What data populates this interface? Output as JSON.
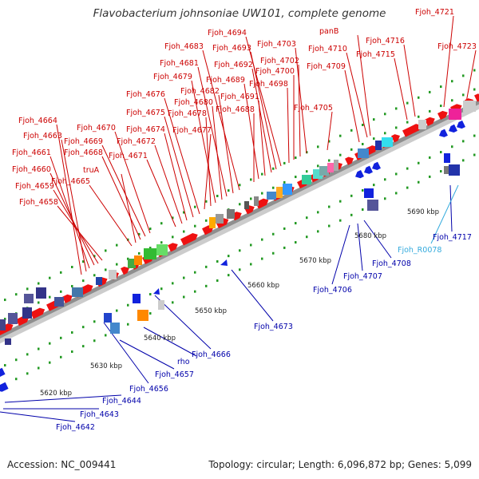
{
  "title": "Flavobacterium johnsoniae UW101, complete genome",
  "footer": {
    "accession": "Accession: NC_009441",
    "summary": "Topology: circular; Length: 6,096,872 bp; Genes: 5,099"
  },
  "colors": {
    "forward_gene": "#ee1111",
    "reverse_gene": "#1122dd",
    "forward_label": "#cc0000",
    "reverse_label": "#0000aa",
    "rna_label": "#33aadd",
    "backbone": "#999999",
    "tick": "#229922"
  },
  "scale": {
    "ticks": [
      {
        "label": "5620 kbp"
      },
      {
        "label": "5630 kbp"
      },
      {
        "label": "5640 kbp"
      },
      {
        "label": "5650 kbp"
      },
      {
        "label": "5660 kbp"
      },
      {
        "label": "5670 kbp"
      },
      {
        "label": "5680 kbp"
      },
      {
        "label": "5690 kbp"
      }
    ]
  },
  "forward_labels": [
    "Fjoh_4658",
    "Fjoh_4659",
    "Fjoh_4660",
    "Fjoh_4661",
    "Fjoh_4663",
    "Fjoh_4664",
    "Fjoh_4665",
    "truA",
    "Fjoh_4668",
    "Fjoh_4669",
    "Fjoh_4670",
    "Fjoh_4671",
    "Fjoh_4672",
    "Fjoh_4674",
    "Fjoh_4675",
    "Fjoh_4676",
    "Fjoh_4677",
    "Fjoh_4678",
    "Fjoh_4679",
    "Fjoh_4680",
    "Fjoh_4681",
    "Fjoh_4682",
    "Fjoh_4683",
    "Fjoh_4688",
    "Fjoh_4689",
    "Fjoh_4691",
    "Fjoh_4692",
    "Fjoh_4693",
    "Fjoh_4694",
    "Fjoh_4698",
    "Fjoh_4700",
    "Fjoh_4702",
    "Fjoh_4703",
    "Fjoh_4705",
    "Fjoh_4709",
    "Fjoh_4710",
    "panB",
    "Fjoh_4715",
    "Fjoh_4716",
    "Fjoh_4721",
    "Fjoh_4723"
  ],
  "reverse_labels": [
    "Fjoh_4642",
    "Fjoh_4643",
    "Fjoh_4644",
    "Fjoh_4656",
    "Fjoh_4657",
    "rho",
    "Fjoh_4666",
    "Fjoh_4673",
    "Fjoh_4706",
    "Fjoh_4707",
    "Fjoh_4708",
    "Fjoh_4717"
  ],
  "rna_labels": [
    "Fjoh_R0078"
  ]
}
